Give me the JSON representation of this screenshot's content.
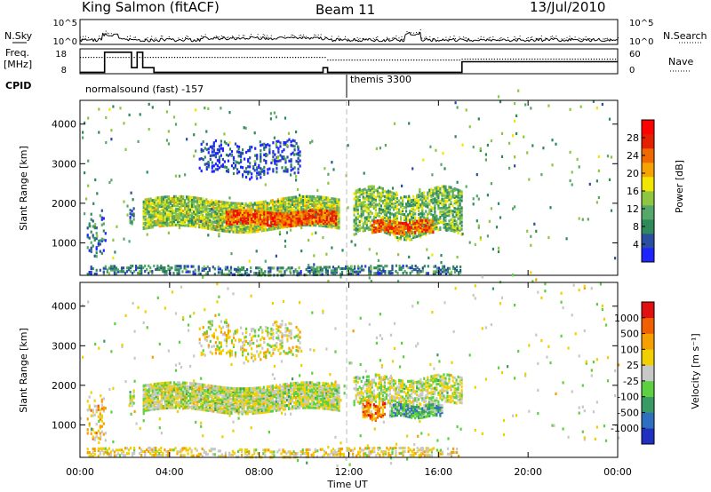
{
  "header": {
    "station": "King Salmon (fitACF)",
    "beam": "Beam 11",
    "date": "13/Jul/2010"
  },
  "status_panels": {
    "nsky_label": "N.Sky",
    "nsearch_label": "N.Search",
    "freq_label_1": "Freq.",
    "freq_label_2": "[MHz]",
    "nave_label": "Nave",
    "cpid_label": "CPID",
    "noise_ticks_left": [
      "10^5",
      "10^0"
    ],
    "noise_ticks_right": [
      "10^5",
      "10^0"
    ],
    "freq_ticks": [
      "18",
      "8"
    ],
    "nave_ticks": [
      "60",
      "0"
    ],
    "cpid_segments": [
      {
        "start_hour": 0,
        "end_hour": 11.9,
        "label": "normalsound (fast) -157"
      },
      {
        "start_hour": 11.9,
        "end_hour": 24,
        "label": "themis 3300"
      }
    ],
    "frequency_steps": [
      {
        "from": 0,
        "to": 1.1,
        "mhz": 8.6
      },
      {
        "from": 1.1,
        "to": 2.3,
        "mhz": 17.3
      },
      {
        "from": 2.3,
        "to": 2.55,
        "mhz": 10.6
      },
      {
        "from": 2.55,
        "to": 2.8,
        "mhz": 17.3
      },
      {
        "from": 2.8,
        "to": 3.3,
        "mhz": 10.6
      },
      {
        "from": 3.3,
        "to": 10.85,
        "mhz": 8.6
      },
      {
        "from": 10.85,
        "to": 11.05,
        "mhz": 10.6
      },
      {
        "from": 11.05,
        "to": 17.05,
        "mhz": 8.6
      },
      {
        "from": 17.05,
        "to": 24,
        "mhz": 13.2
      }
    ]
  },
  "chart_data": [
    {
      "type": "heatmap",
      "parameter": "Power",
      "ylabel": "Slant Range [km]",
      "xlabel": "Time UT",
      "xlim_hours": [
        0,
        24
      ],
      "ylim_km": [
        180,
        4600
      ],
      "x_ticks": [
        "00:00",
        "04:00",
        "08:00",
        "12:00",
        "16:00",
        "20:00",
        "00:00"
      ],
      "y_ticks": [
        1000,
        2000,
        3000,
        4000
      ],
      "colorbar": {
        "label": "Power [dB]",
        "ticks": [
          4,
          8,
          12,
          16,
          20,
          24,
          28
        ],
        "colors": [
          "#1f24ff",
          "#2b4f9f",
          "#2f8a5a",
          "#56a86a",
          "#8fc641",
          "#f2e600",
          "#f5a300",
          "#ef6800",
          "#e52000",
          "#ff0000"
        ]
      },
      "regions": [
        {
          "t0": 0.3,
          "t1": 1.1,
          "r0": 600,
          "r1": 1700,
          "level": 0.2,
          "density": 0.25
        },
        {
          "t0": 2.2,
          "t1": 2.4,
          "r0": 1500,
          "r1": 1850,
          "level": 0.25,
          "density": 0.5
        },
        {
          "t0": 2.8,
          "t1": 11.6,
          "r0": 1350,
          "r1": 2100,
          "level": 0.45,
          "density": 0.85
        },
        {
          "t0": 6.5,
          "t1": 11.4,
          "r0": 1450,
          "r1": 1800,
          "level": 0.78,
          "density": 0.85
        },
        {
          "t0": 12.2,
          "t1": 17.0,
          "r0": 1200,
          "r1": 2300,
          "level": 0.4,
          "density": 0.6
        },
        {
          "t0": 13.0,
          "t1": 15.8,
          "r0": 1250,
          "r1": 1550,
          "level": 0.75,
          "density": 0.8
        },
        {
          "t0": 5.3,
          "t1": 9.8,
          "r0": 2700,
          "r1": 3550,
          "level": 0.1,
          "density": 0.25
        },
        {
          "t0": 0.3,
          "t1": 17.0,
          "r0": 200,
          "r1": 420,
          "level": 0.25,
          "density": 0.45
        },
        {
          "t0": 0.0,
          "t1": 24.0,
          "r0": 300,
          "r1": 4400,
          "level": 0.35,
          "density": 0.012
        }
      ]
    },
    {
      "type": "heatmap",
      "parameter": "Velocity",
      "ylabel": "Slant Range [km]",
      "xlabel": "Time UT",
      "xlim_hours": [
        0,
        24
      ],
      "ylim_km": [
        180,
        4600
      ],
      "x_ticks": [
        "00:00",
        "04:00",
        "08:00",
        "12:00",
        "16:00",
        "20:00",
        "00:00"
      ],
      "y_ticks": [
        1000,
        2000,
        3000,
        4000
      ],
      "colorbar": {
        "label": "Velocity [m s⁻¹]",
        "ticks": [
          "1000",
          "500",
          "100",
          "25",
          "-25",
          "-100",
          "-500",
          "-1000"
        ],
        "colors": [
          "#2030c0",
          "#2f6fbf",
          "#3a9a66",
          "#5cd040",
          "#c8c8c8",
          "#f0d000",
          "#f5a000",
          "#f06000",
          "#e01010"
        ]
      },
      "regions": [
        {
          "t0": 2.2,
          "t1": 2.4,
          "r0": 1500,
          "r1": 1850,
          "level": 0.5,
          "density": 0.5
        },
        {
          "t0": 2.8,
          "t1": 11.6,
          "r0": 1350,
          "r1": 2000,
          "level": 0.5,
          "density": 0.85
        },
        {
          "t0": 12.2,
          "t1": 17.0,
          "r0": 1500,
          "r1": 2200,
          "level": 0.5,
          "density": 0.55
        },
        {
          "t0": 13.8,
          "t1": 16.2,
          "r0": 1200,
          "r1": 1500,
          "level": 0.32,
          "density": 0.8
        },
        {
          "t0": 12.6,
          "t1": 13.6,
          "r0": 1150,
          "r1": 1600,
          "level": 0.75,
          "density": 0.6
        },
        {
          "t0": 0.3,
          "t1": 1.1,
          "r0": 600,
          "r1": 1700,
          "level": 0.62,
          "density": 0.25
        },
        {
          "t0": 5.3,
          "t1": 9.8,
          "r0": 2700,
          "r1": 3550,
          "level": 0.55,
          "density": 0.25
        },
        {
          "t0": 0.3,
          "t1": 17.0,
          "r0": 200,
          "r1": 420,
          "level": 0.6,
          "density": 0.4
        },
        {
          "t0": 0.0,
          "t1": 24.0,
          "r0": 300,
          "r1": 4400,
          "level": 0.5,
          "density": 0.012
        }
      ]
    }
  ]
}
